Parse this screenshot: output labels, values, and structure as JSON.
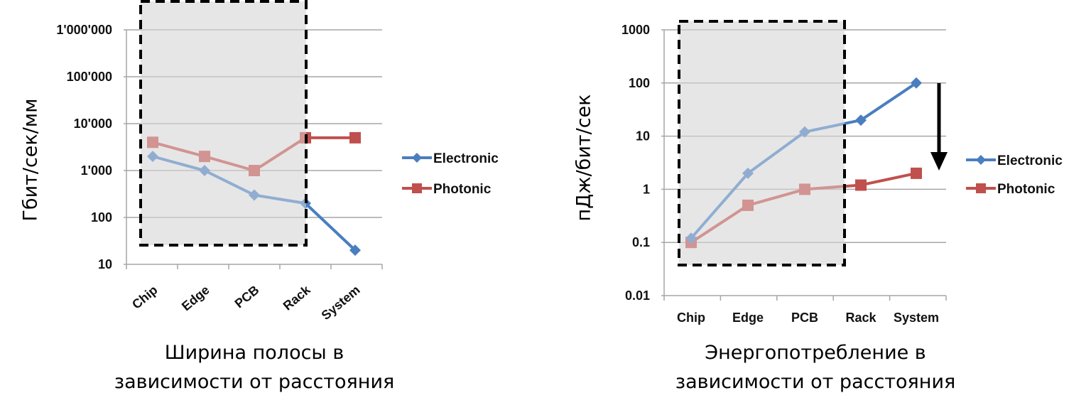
{
  "chart_data": [
    {
      "type": "line",
      "yscale": "log",
      "ylim": [
        10,
        1000000
      ],
      "categories": [
        "Chip",
        "Edge",
        "PCB",
        "Rack",
        "System"
      ],
      "yticks": [
        "10",
        "100",
        "1'000",
        "10'000",
        "100'000",
        "1'000'000"
      ],
      "ylabel": "Гбит/сек/мм",
      "caption": [
        "Ширина полосы в",
        "зависимости от расстояния"
      ],
      "grid": "horizontal",
      "legend": "right",
      "highlight_region": {
        "from": "Chip",
        "to": "Rack",
        "style": "dashed box, grey fill"
      },
      "series": [
        {
          "name": "Electronic",
          "color": "#4a7ebf",
          "marker": "diamond",
          "values": [
            2000,
            1000,
            300,
            200,
            20
          ]
        },
        {
          "name": "Photonic",
          "color": "#c0504d",
          "marker": "square",
          "values": [
            4000,
            2000,
            1000,
            5000,
            5000
          ]
        }
      ]
    },
    {
      "type": "line",
      "yscale": "log",
      "ylim": [
        0.01,
        1000
      ],
      "categories": [
        "Chip",
        "Edge",
        "PCB",
        "Rack",
        "System"
      ],
      "yticks": [
        "0.01",
        "0.1",
        "1",
        "10",
        "100",
        "1000"
      ],
      "ylabel": "пДж/бит/сек",
      "caption": [
        "Энергопотребление  в",
        "зависимости от  расстояния"
      ],
      "grid": "horizontal",
      "legend": "right",
      "highlight_region": {
        "from": "Chip",
        "to": "PCB",
        "style": "dashed box, grey fill"
      },
      "annotation": "downward arrow from Electronic to Photonic at System",
      "series": [
        {
          "name": "Electronic",
          "color": "#4a7ebf",
          "marker": "diamond",
          "values": [
            0.12,
            2,
            12,
            20,
            100
          ]
        },
        {
          "name": "Photonic",
          "color": "#c0504d",
          "marker": "square",
          "values": [
            0.1,
            0.5,
            1,
            1.2,
            2
          ]
        }
      ]
    }
  ]
}
